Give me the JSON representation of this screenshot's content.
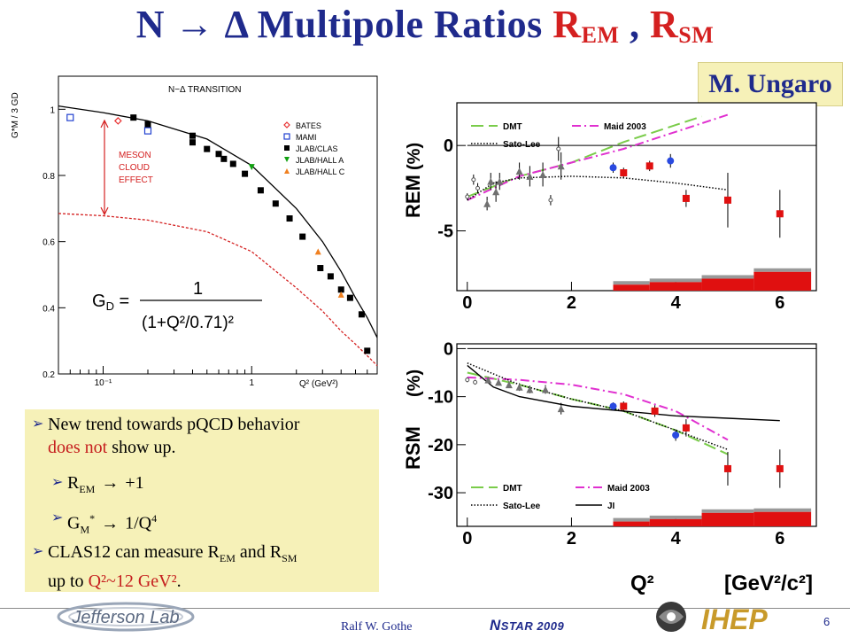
{
  "slide": {
    "title_main": "N → Δ  Multipole Ratios ",
    "title_rem": "R",
    "title_rem_sub": "EM",
    "title_sep": " , ",
    "title_rsm": "R",
    "title_rsm_sub": "SM",
    "author": "M. Ungaro",
    "presenter": "Ralf  W. Gothe",
    "conference_n": "N",
    "conference_rest": "STAR 2009",
    "page_number": "6",
    "jlab_logo_text": "Jefferson Lab",
    "ihep_logo_text": "IHEP"
  },
  "bullets": {
    "b1_part1": "New trend towards pQCD behavior",
    "b1_red": "does not",
    "b1_part2": " show up.",
    "b2_r": "R",
    "b2_sub": "EM",
    "b2_val": "+1",
    "b3_g": "G",
    "b3_sub": "M",
    "b3_sup": "*",
    "b3_val": "1/Q",
    "b3_pow": "4",
    "b4_part1": "CLAS12 can measure R",
    "b4_sub1": "EM",
    "b4_mid": " and R",
    "b4_sub2": "SM",
    "b4_line2": "up to ",
    "b4_red": "Q²~12 GeV²",
    "b4_end": "."
  },
  "chart_data": [
    {
      "type": "scatter",
      "title": "N−Δ TRANSITION",
      "ylabel": "G*M / 3 GD",
      "xlabel": "Q² (GeV²)",
      "x_scale": "log",
      "xlim": [
        0.05,
        7
      ],
      "ylim": [
        0.2,
        1.1
      ],
      "y_ticks": [
        "0.2",
        "0.4",
        "0.6",
        "0.8",
        "1"
      ],
      "x_ticks": [
        "10⁻¹",
        "1"
      ],
      "legend": [
        "BATES",
        "MAMI",
        "JLAB/CLAS",
        "JLAB/HALL A",
        "JLAB/HALL C"
      ],
      "legend_colors": [
        "#e83030",
        "#2040d0",
        "#000000",
        "#10a010",
        "#f08020"
      ],
      "annotation": [
        "MESON",
        "CLOUD",
        "EFFECT"
      ],
      "formula_lhs": "G",
      "formula_lhs_sub": "D",
      "formula_num": "1",
      "formula_den": "(1+Q²/0.71)²",
      "series": [
        {
          "name": "BATES",
          "marker": "open-diamond",
          "points": [
            [
              0.126,
              0.965
            ]
          ]
        },
        {
          "name": "MAMI",
          "marker": "open-square",
          "points": [
            [
              0.06,
              0.975
            ],
            [
              0.2,
              0.935
            ]
          ]
        },
        {
          "name": "JLAB/CLAS",
          "marker": "filled-square",
          "points": [
            [
              0.16,
              0.975
            ],
            [
              0.2,
              0.955
            ],
            [
              0.4,
              0.92
            ],
            [
              0.4,
              0.9
            ],
            [
              0.5,
              0.88
            ],
            [
              0.6,
              0.865
            ],
            [
              0.65,
              0.85
            ],
            [
              0.75,
              0.835
            ],
            [
              0.9,
              0.805
            ],
            [
              1.15,
              0.755
            ],
            [
              1.45,
              0.715
            ],
            [
              1.8,
              0.67
            ],
            [
              2.2,
              0.615
            ],
            [
              2.9,
              0.52
            ],
            [
              3.4,
              0.495
            ],
            [
              4.0,
              0.455
            ],
            [
              4.6,
              0.43
            ],
            [
              5.5,
              0.38
            ],
            [
              6.0,
              0.27
            ]
          ]
        },
        {
          "name": "JLAB/HALL A",
          "marker": "down-triangle",
          "points": [
            [
              1.0,
              0.825
            ]
          ]
        },
        {
          "name": "JLAB/HALL C",
          "marker": "up-triangle",
          "points": [
            [
              2.8,
              0.57
            ],
            [
              4.0,
              0.44
            ]
          ]
        }
      ],
      "curves": [
        {
          "name": "",
          "style": "solid",
          "points": [
            [
              0.05,
              1.01
            ],
            [
              0.1,
              0.99
            ],
            [
              0.2,
              0.965
            ],
            [
              0.5,
              0.91
            ],
            [
              1.0,
              0.83
            ],
            [
              2.0,
              0.7
            ],
            [
              3.0,
              0.6
            ],
            [
              4.0,
              0.51
            ],
            [
              5.0,
              0.43
            ],
            [
              6.0,
              0.37
            ],
            [
              7.0,
              0.31
            ]
          ]
        },
        {
          "name": "",
          "style": "dashed-red",
          "points": [
            [
              0.05,
              0.685
            ],
            [
              0.1,
              0.678
            ],
            [
              0.2,
              0.665
            ],
            [
              0.5,
              0.63
            ],
            [
              1.0,
              0.57
            ],
            [
              2.0,
              0.46
            ],
            [
              3.0,
              0.39
            ],
            [
              4.0,
              0.33
            ],
            [
              5.0,
              0.29
            ],
            [
              6.0,
              0.255
            ],
            [
              7.0,
              0.225
            ]
          ]
        }
      ]
    },
    {
      "type": "scatter",
      "ylabel": "REM",
      "ylabel_unit": "(%)",
      "xlim": [
        -0.2,
        6.7
      ],
      "ylim": [
        -8.5,
        2.5
      ],
      "x_ticks": [
        "0",
        "2",
        "4",
        "6"
      ],
      "y_ticks": [
        "0",
        "-5"
      ],
      "legend": [
        "DMT",
        "Maid 2003",
        "Sato-Lee"
      ],
      "series": [
        {
          "name": "",
          "marker": "red-square",
          "points": [
            [
              3.0,
              -1.6
            ],
            [
              3.5,
              -1.2
            ],
            [
              4.2,
              -3.1
            ],
            [
              5.0,
              -3.2
            ],
            [
              6.0,
              -4.0
            ]
          ],
          "errors": [
            0.3,
            0.3,
            0.5,
            1.6,
            1.4
          ]
        },
        {
          "name": "",
          "marker": "blue-circle",
          "points": [
            [
              2.8,
              -1.3
            ],
            [
              3.9,
              -0.9
            ]
          ],
          "errors": [
            0.3,
            0.4
          ]
        },
        {
          "name": "",
          "marker": "gray-triangle",
          "points": [
            [
              0.45,
              -2.1
            ],
            [
              0.55,
              -2.7
            ],
            [
              0.62,
              -2.1
            ],
            [
              1.0,
              -1.5
            ],
            [
              1.2,
              -1.8
            ],
            [
              1.45,
              -1.7
            ],
            [
              1.8,
              -1.2
            ],
            [
              0.38,
              -3.4
            ]
          ],
          "errors": [
            0.5,
            0.6,
            0.5,
            0.5,
            0.6,
            0.7,
            0.8,
            0.4
          ]
        },
        {
          "name": "",
          "marker": "open-points",
          "points": [
            [
              0.0,
              -3.0
            ],
            [
              0.12,
              -2.0
            ],
            [
              0.2,
              -2.5
            ],
            [
              1.6,
              -3.2
            ],
            [
              1.75,
              -0.2
            ]
          ],
          "errors": [
            0.2,
            0.3,
            0.3,
            0.3,
            0.7
          ]
        }
      ],
      "curves": [
        {
          "name": "DMT",
          "style": "long-dash-green",
          "points": [
            [
              0,
              -3.0
            ],
            [
              1,
              -1.8
            ],
            [
              2,
              -1.0
            ],
            [
              3,
              0.2
            ],
            [
              4,
              1.2
            ],
            [
              4.5,
              1.7
            ]
          ]
        },
        {
          "name": "Maid 2003",
          "style": "dash-dot-magenta",
          "points": [
            [
              0,
              -3.2
            ],
            [
              1,
              -1.8
            ],
            [
              2,
              -1.0
            ],
            [
              3,
              -0.2
            ],
            [
              4,
              0.8
            ],
            [
              5,
              1.8
            ]
          ]
        },
        {
          "name": "Sato-Lee",
          "style": "dotted",
          "points": [
            [
              0,
              -3.2
            ],
            [
              0.5,
              -2.2
            ],
            [
              1,
              -1.9
            ],
            [
              2,
              -1.8
            ],
            [
              3,
              -1.9
            ],
            [
              4,
              -2.2
            ],
            [
              5,
              -2.6
            ]
          ]
        }
      ],
      "systematic_bands": [
        [
          2.8,
          3.5,
          0.35
        ],
        [
          3.5,
          4.5,
          0.5
        ],
        [
          4.5,
          5.5,
          0.7
        ],
        [
          5.5,
          6.6,
          1.1
        ]
      ],
      "xlabel": "Q²",
      "xlabel_unit": "[GeV²/c²]"
    },
    {
      "type": "scatter",
      "ylabel": "RSM",
      "ylabel_unit": "(%)",
      "xlim": [
        -0.2,
        6.7
      ],
      "ylim": [
        -37,
        1
      ],
      "x_ticks": [
        "0",
        "2",
        "4",
        "6"
      ],
      "y_ticks": [
        "0",
        "-10",
        "-20",
        "-30"
      ],
      "legend": [
        "DMT",
        "Maid 2003",
        "Sato-Lee",
        "JI"
      ],
      "series": [
        {
          "name": "",
          "marker": "red-square",
          "points": [
            [
              3.0,
              -12
            ],
            [
              3.6,
              -13
            ],
            [
              4.2,
              -16.5
            ],
            [
              5.0,
              -25
            ],
            [
              6.0,
              -25
            ]
          ],
          "errors": [
            1.0,
            1.2,
            1.8,
            3.5,
            4
          ]
        },
        {
          "name": "",
          "marker": "blue-circle",
          "points": [
            [
              2.8,
              -12
            ],
            [
              4.0,
              -18
            ]
          ],
          "errors": [
            0.8,
            1.2
          ]
        },
        {
          "name": "",
          "marker": "gray-triangle",
          "points": [
            [
              0.4,
              -6.5
            ],
            [
              0.6,
              -7
            ],
            [
              0.8,
              -7.5
            ],
            [
              1.0,
              -8
            ],
            [
              1.2,
              -8.5
            ],
            [
              1.5,
              -8.5
            ],
            [
              1.8,
              -12.5
            ]
          ],
          "errors": [
            0.6,
            0.6,
            0.7,
            0.8,
            0.8,
            0.9,
            1.2
          ]
        },
        {
          "name": "",
          "marker": "open-points",
          "points": [
            [
              0.0,
              -6.5
            ],
            [
              0.15,
              -7.0
            ]
          ],
          "errors": [
            0.5,
            0.5
          ]
        }
      ],
      "curves": [
        {
          "name": "DMT",
          "style": "long-dash-green",
          "points": [
            [
              0,
              -5
            ],
            [
              1,
              -7.5
            ],
            [
              2,
              -10.5
            ],
            [
              3,
              -13
            ],
            [
              4,
              -17
            ],
            [
              5,
              -22
            ]
          ]
        },
        {
          "name": "Maid 2003",
          "style": "dash-dot-magenta",
          "points": [
            [
              0,
              -6
            ],
            [
              1,
              -6.5
            ],
            [
              2,
              -7.5
            ],
            [
              3,
              -9.5
            ],
            [
              4,
              -13
            ],
            [
              5,
              -19
            ]
          ]
        },
        {
          "name": "Sato-Lee",
          "style": "dotted",
          "points": [
            [
              0,
              -3
            ],
            [
              1,
              -7.5
            ],
            [
              2,
              -10.5
            ],
            [
              3,
              -13
            ],
            [
              4,
              -17
            ],
            [
              5,
              -21
            ]
          ]
        },
        {
          "name": "JI",
          "style": "solid",
          "points": [
            [
              0,
              -3.5
            ],
            [
              0.5,
              -8
            ],
            [
              1,
              -10
            ],
            [
              2,
              -12
            ],
            [
              3,
              -13
            ],
            [
              4,
              -14
            ],
            [
              5,
              -14.5
            ],
            [
              6,
              -15
            ]
          ]
        }
      ],
      "systematic_bands": [
        [
          2.8,
          3.5,
          1.0
        ],
        [
          3.5,
          4.5,
          1.5
        ],
        [
          4.5,
          5.5,
          2.8
        ],
        [
          5.5,
          6.6,
          3.0
        ]
      ],
      "xlabel": "Q²",
      "xlabel_unit": "[GeV²/c²]"
    }
  ]
}
